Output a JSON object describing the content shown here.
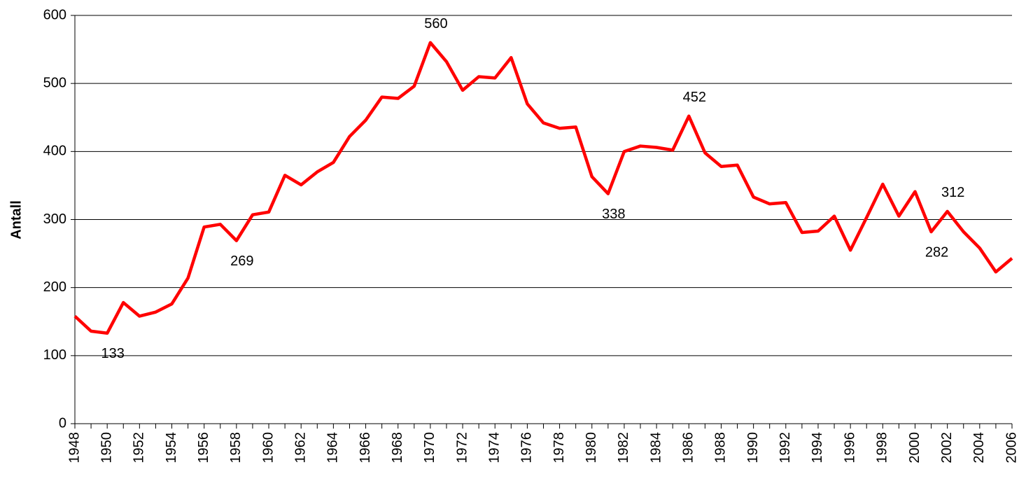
{
  "chart_data": {
    "type": "line",
    "y_label": "Antall",
    "x": [
      1948,
      1949,
      1950,
      1951,
      1952,
      1953,
      1954,
      1955,
      1956,
      1957,
      1958,
      1959,
      1960,
      1961,
      1962,
      1963,
      1964,
      1965,
      1966,
      1967,
      1968,
      1969,
      1970,
      1971,
      1972,
      1973,
      1974,
      1975,
      1976,
      1977,
      1978,
      1979,
      1980,
      1981,
      1982,
      1983,
      1984,
      1985,
      1986,
      1987,
      1988,
      1989,
      1990,
      1991,
      1992,
      1993,
      1994,
      1995,
      1996,
      1997,
      1998,
      1999,
      2000,
      2001,
      2002,
      2003,
      2004,
      2005,
      2006
    ],
    "series": [
      {
        "name": "Antall",
        "color": "#ff0000",
        "values": [
          158,
          136,
          133,
          178,
          158,
          164,
          176,
          214,
          289,
          293,
          269,
          307,
          311,
          365,
          351,
          370,
          384,
          422,
          446,
          480,
          478,
          496,
          560,
          532,
          490,
          510,
          508,
          538,
          470,
          442,
          434,
          436,
          363,
          338,
          400,
          408,
          406,
          402,
          452,
          398,
          378,
          380,
          333,
          323,
          325,
          281,
          283,
          305,
          255,
          303,
          352,
          305,
          341,
          282,
          312,
          282,
          258,
          223,
          243
        ]
      }
    ],
    "labeled_points": [
      2,
      10,
      22,
      33,
      38,
      53,
      54
    ],
    "xlim": [
      1948,
      2006
    ],
    "xticks": [
      1948,
      1950,
      1952,
      1954,
      1956,
      1958,
      1960,
      1962,
      1964,
      1966,
      1968,
      1970,
      1972,
      1974,
      1976,
      1978,
      1980,
      1982,
      1984,
      1986,
      1988,
      1990,
      1992,
      1994,
      1996,
      1998,
      2000,
      2002,
      2004,
      2006
    ],
    "ylim": [
      0,
      600
    ],
    "yticks": [
      0,
      100,
      200,
      300,
      400,
      500,
      600
    ],
    "grid": true
  }
}
